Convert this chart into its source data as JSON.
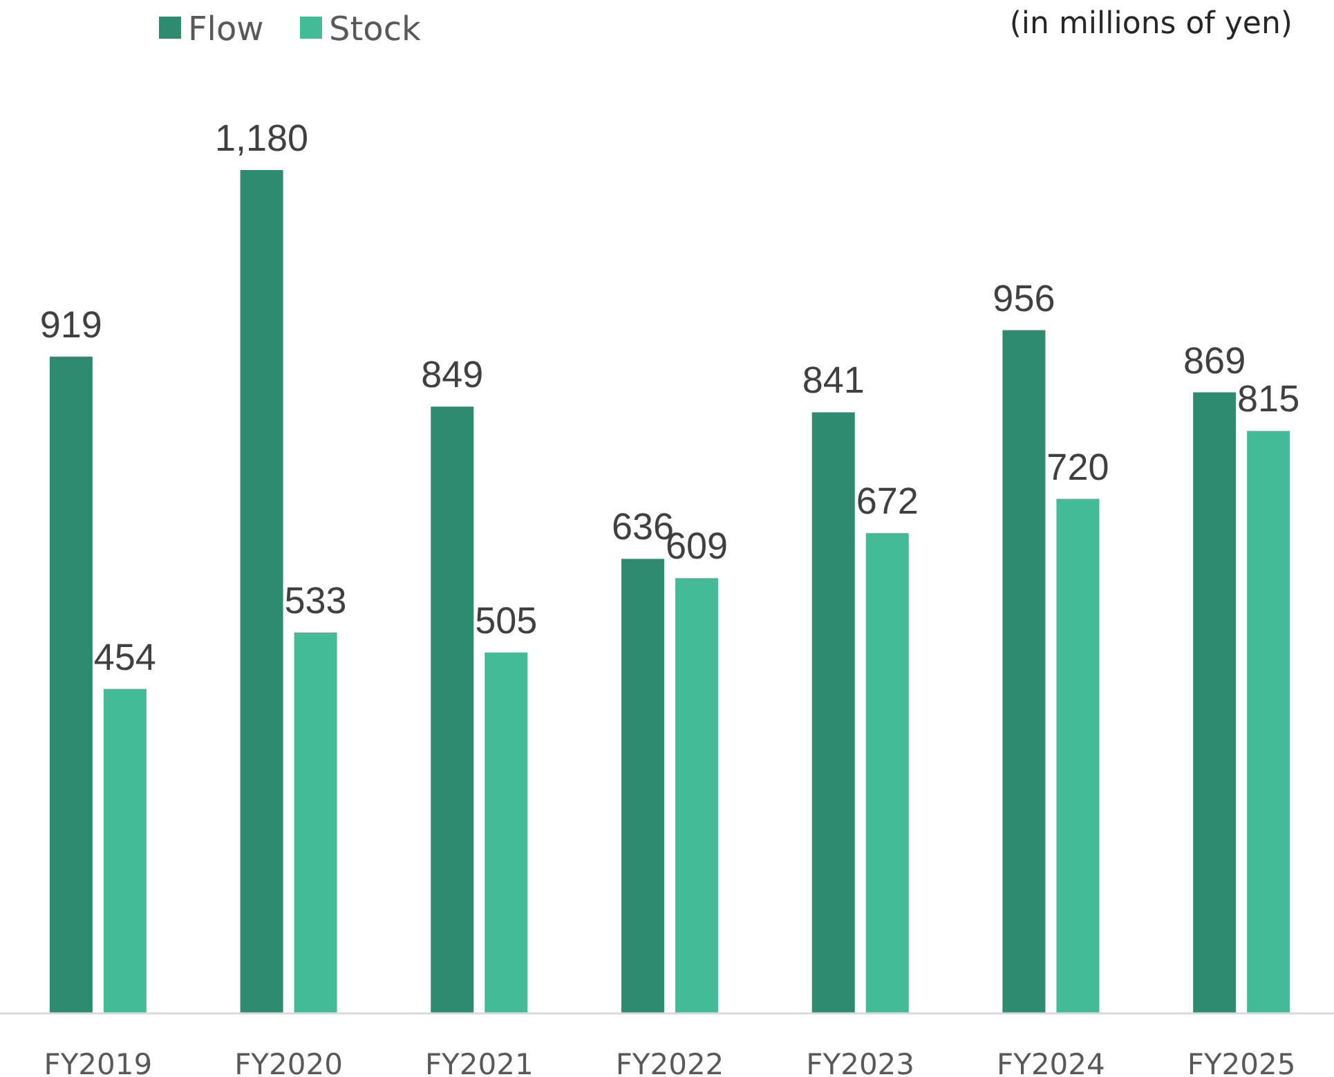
{
  "chart_data": {
    "type": "bar",
    "annotations": [
      "(in millions of yen)"
    ],
    "categories": [
      "FY2019",
      "FY2020",
      "FY2021",
      "FY2022",
      "FY2023",
      "FY2024",
      "FY2025"
    ],
    "series": [
      {
        "name": "Flow",
        "color": "#2f8b6f",
        "values": [
          919,
          1180,
          849,
          636,
          841,
          956,
          869
        ],
        "value_labels": [
          "919",
          "1,180",
          "849",
          "636",
          "841",
          "956",
          "869"
        ]
      },
      {
        "name": "Stock",
        "color": "#43bb97",
        "values": [
          454,
          533,
          505,
          609,
          672,
          720,
          815
        ],
        "value_labels": [
          "454",
          "533",
          "505",
          "609",
          "672",
          "720",
          "815"
        ]
      }
    ],
    "legend": "top left"
  }
}
